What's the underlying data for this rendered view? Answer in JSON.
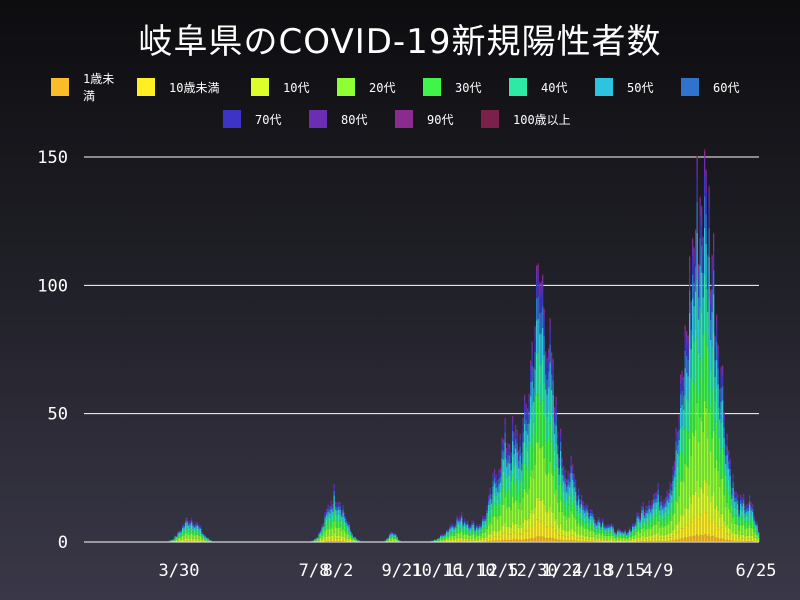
{
  "title": "岐阜県のCOVID-19新規陽性者数",
  "chart_data": {
    "type": "bar",
    "stacked": true,
    "title": "岐阜県のCOVID-19新規陽性者数",
    "xlabel": "",
    "ylabel": "",
    "ylim": [
      0,
      150
    ],
    "yticks": [
      0,
      50,
      100,
      150
    ],
    "grid": true,
    "legend_placement": "top",
    "x_tick_labels": [
      "3/30",
      "7/8",
      "8/2",
      "9/21",
      "10/16",
      "11/10",
      "12/5",
      "12/30",
      "1/24",
      "2/18",
      "3/15",
      "4/9",
      "6/25"
    ],
    "series": [
      {
        "name": "1歳未満",
        "color": "#fbbc2a"
      },
      {
        "name": "10歳未満",
        "color": "#ffee21"
      },
      {
        "name": "10代",
        "color": "#dcfe2a"
      },
      {
        "name": "20代",
        "color": "#8dff33"
      },
      {
        "name": "30代",
        "color": "#3ef548"
      },
      {
        "name": "40代",
        "color": "#2ee8a6"
      },
      {
        "name": "50代",
        "color": "#2cc4de"
      },
      {
        "name": "60代",
        "color": "#2f73cf"
      },
      {
        "name": "70代",
        "color": "#3d34c5"
      },
      {
        "name": "80代",
        "color": "#6a2db3"
      },
      {
        "name": "90代",
        "color": "#8b2a8f"
      },
      {
        "name": "100歳以上",
        "color": "#7b2048"
      }
    ],
    "waves_note_free": true,
    "daily_totals": [
      {
        "range": [
          "3/20",
          "4/12"
        ],
        "peak": 10
      },
      {
        "range": [
          "7/25",
          "8/20"
        ],
        "peak": 22
      },
      {
        "range": [
          "9/15",
          "9/30"
        ],
        "peak": 4
      },
      {
        "range": [
          "10/20",
          "11/20"
        ],
        "peak": 12
      },
      {
        "range": [
          "11/20",
          "1/10"
        ],
        "peak": 54
      },
      {
        "range": [
          "1/5",
          "1/25"
        ],
        "peak": 103
      },
      {
        "range": [
          "1/25",
          "3/10"
        ],
        "peak": 40
      },
      {
        "range": [
          "3/15",
          "4/30"
        ],
        "peak": 25
      },
      {
        "range": [
          "4/20",
          "6/10"
        ],
        "peak": 149
      },
      {
        "range": [
          "6/10",
          "6/25"
        ],
        "peak": 18
      }
    ]
  }
}
